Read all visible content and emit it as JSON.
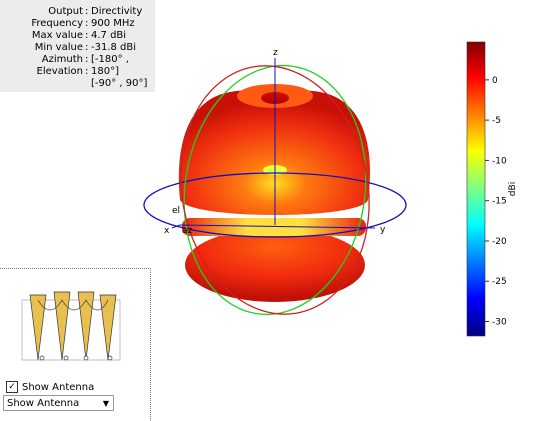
{
  "info": [
    {
      "label": "Output",
      "value": "Directivity"
    },
    {
      "label": "Frequency",
      "value": "900 MHz"
    },
    {
      "label": "Max value",
      "value": "4.7 dBi"
    },
    {
      "label": "Min value",
      "value": "-31.8 dBi"
    },
    {
      "label": "Azimuth",
      "value": "[-180° ,"
    },
    {
      "label": "Elevation",
      "value": "180°]"
    }
  ],
  "info_extra": "[-90° , 90°]",
  "axes": {
    "x": "x",
    "y": "y",
    "z": "z",
    "az": "az",
    "el": "el"
  },
  "colorbar": {
    "label": "dBi",
    "lim": [
      -31.8,
      4.7
    ],
    "ticks": [
      0,
      -5,
      -10,
      -15,
      -20,
      -25,
      -30
    ]
  },
  "checkbox": "Show Antenna",
  "dropdown": "Show Antenna"
}
